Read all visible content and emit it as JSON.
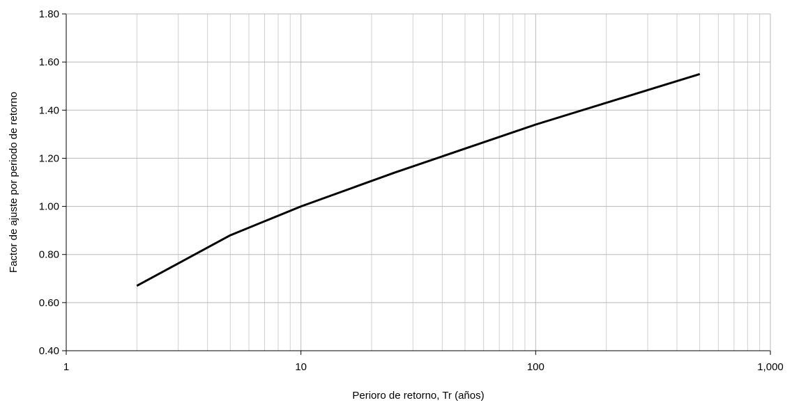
{
  "chart_data": {
    "type": "line",
    "xlabel": "Perioro de retorno, Tr (años)",
    "ylabel": "Factor de ajuste por periodo de retorno",
    "xscale": "log",
    "xlim": [
      1,
      1000
    ],
    "ylim": [
      0.4,
      1.8
    ],
    "x_ticks": [
      1,
      10,
      100,
      1000
    ],
    "x_tick_labels": [
      "1",
      "10",
      "100",
      "1,000"
    ],
    "y_ticks": [
      0.4,
      0.6,
      0.8,
      1.0,
      1.2,
      1.4,
      1.6,
      1.8
    ],
    "y_tick_labels": [
      "0.40",
      "0.60",
      "0.80",
      "1.00",
      "1.20",
      "1.40",
      "1.60",
      "1.80"
    ],
    "grid": true,
    "legend": "none",
    "colors": {
      "line": "#000000",
      "grid": "#c0c0c0",
      "background": "#ffffff"
    },
    "series": [
      {
        "x": [
          2,
          5,
          10,
          25,
          50,
          100,
          500
        ],
        "y": [
          0.67,
          0.88,
          1.0,
          1.14,
          1.24,
          1.34,
          1.55
        ]
      }
    ]
  }
}
